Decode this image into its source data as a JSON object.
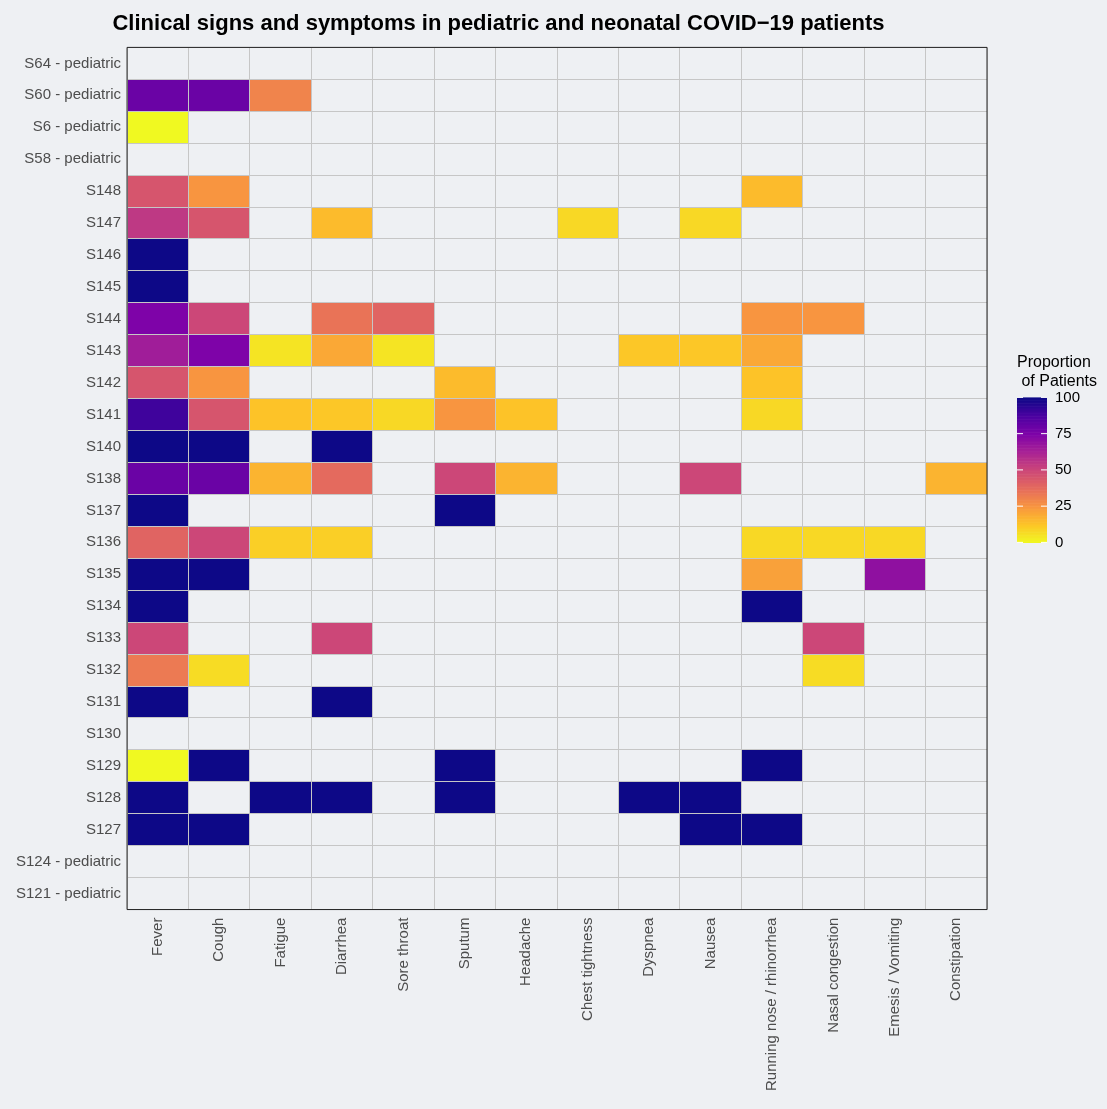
{
  "chart_data": {
    "type": "heatmap",
    "title": "Clinical signs and symptoms in pediatric and neonatal COVID−19 patients",
    "clabel": "Proportion\n of Patients",
    "clim": [
      0,
      100
    ],
    "cticks": [
      0,
      25,
      50,
      75,
      100
    ],
    "grid": true,
    "categories": [
      "Fever",
      "Cough",
      "Fatigue",
      "Diarrhea",
      "Sore throat",
      "Sputum",
      "Headache",
      "Chest tightness",
      "Dyspnea",
      "Nausea",
      "Running nose / rhinorrhea",
      "Nasal congestion",
      "Emesis / Vomiting",
      "Constipation"
    ],
    "y_categories": [
      "S64 - pediatric",
      "S60 - pediatric",
      "S6 - pediatric",
      "S58 - pediatric",
      "S148",
      "S147",
      "S146",
      "S145",
      "S144",
      "S143",
      "S142",
      "S141",
      "S140",
      "S138",
      "S137",
      "S136",
      "S135",
      "S134",
      "S133",
      "S132",
      "S131",
      "S130",
      "S129",
      "S128",
      "S127",
      "S124 - pediatric",
      "S121 - pediatric"
    ],
    "cells": [
      [
        null,
        null,
        null,
        null,
        null,
        null,
        null,
        null,
        null,
        null,
        null,
        null,
        null,
        null
      ],
      [
        80,
        80,
        30,
        null,
        null,
        null,
        null,
        null,
        null,
        null,
        null,
        null,
        null,
        null
      ],
      [
        0,
        null,
        null,
        null,
        null,
        null,
        null,
        null,
        null,
        null,
        null,
        null,
        null,
        null
      ],
      [
        null,
        null,
        null,
        null,
        null,
        null,
        null,
        null,
        null,
        null,
        null,
        null,
        null,
        null
      ],
      [
        45,
        25,
        null,
        null,
        null,
        null,
        null,
        null,
        null,
        null,
        15,
        null,
        null,
        null
      ],
      [
        55,
        45,
        null,
        15,
        null,
        null,
        null,
        8,
        null,
        8,
        null,
        null,
        null,
        null
      ],
      [
        100,
        null,
        null,
        null,
        null,
        null,
        null,
        null,
        null,
        null,
        null,
        null,
        null,
        null
      ],
      [
        100,
        null,
        null,
        null,
        null,
        null,
        null,
        null,
        null,
        null,
        null,
        null,
        null,
        null
      ],
      [
        75,
        50,
        null,
        35,
        40,
        null,
        null,
        null,
        null,
        null,
        25,
        25,
        null,
        null
      ],
      [
        65,
        75,
        5,
        20,
        5,
        null,
        null,
        null,
        12,
        12,
        20,
        null,
        null,
        null
      ],
      [
        45,
        25,
        null,
        null,
        null,
        15,
        null,
        null,
        null,
        null,
        13,
        null,
        null,
        null
      ],
      [
        90,
        45,
        13,
        12,
        8,
        25,
        13,
        null,
        null,
        null,
        8,
        null,
        null,
        null
      ],
      [
        100,
        100,
        null,
        100,
        null,
        null,
        null,
        null,
        null,
        null,
        null,
        null,
        null,
        null
      ],
      [
        80,
        80,
        17,
        38,
        null,
        50,
        17,
        null,
        null,
        50,
        null,
        null,
        null,
        17
      ],
      [
        100,
        null,
        null,
        null,
        null,
        100,
        null,
        null,
        null,
        null,
        null,
        null,
        null,
        null
      ],
      [
        40,
        50,
        10,
        10,
        null,
        null,
        null,
        null,
        null,
        null,
        8,
        8,
        8,
        null
      ],
      [
        100,
        100,
        null,
        null,
        null,
        null,
        null,
        null,
        null,
        null,
        22,
        null,
        70,
        null
      ],
      [
        100,
        null,
        null,
        null,
        null,
        null,
        null,
        null,
        null,
        null,
        100,
        null,
        null,
        null
      ],
      [
        50,
        null,
        null,
        50,
        null,
        null,
        null,
        null,
        null,
        null,
        null,
        50,
        null,
        null
      ],
      [
        33,
        7,
        null,
        null,
        null,
        null,
        null,
        null,
        null,
        null,
        null,
        7,
        null,
        null
      ],
      [
        100,
        null,
        null,
        100,
        null,
        null,
        null,
        null,
        null,
        null,
        null,
        null,
        null,
        null
      ],
      [
        null,
        null,
        null,
        null,
        null,
        null,
        null,
        null,
        null,
        null,
        null,
        null,
        null,
        null
      ],
      [
        0,
        100,
        null,
        null,
        null,
        100,
        null,
        null,
        null,
        null,
        100,
        null,
        null,
        null
      ],
      [
        100,
        null,
        100,
        100,
        null,
        100,
        null,
        null,
        100,
        100,
        null,
        null,
        null,
        null
      ],
      [
        100,
        100,
        null,
        null,
        null,
        null,
        null,
        null,
        null,
        100,
        100,
        null,
        null,
        null
      ],
      [
        null,
        null,
        null,
        null,
        null,
        null,
        null,
        null,
        null,
        null,
        null,
        null,
        null,
        null
      ],
      [
        null,
        null,
        null,
        null,
        null,
        null,
        null,
        null,
        null,
        null,
        null,
        null,
        null,
        null
      ]
    ]
  }
}
